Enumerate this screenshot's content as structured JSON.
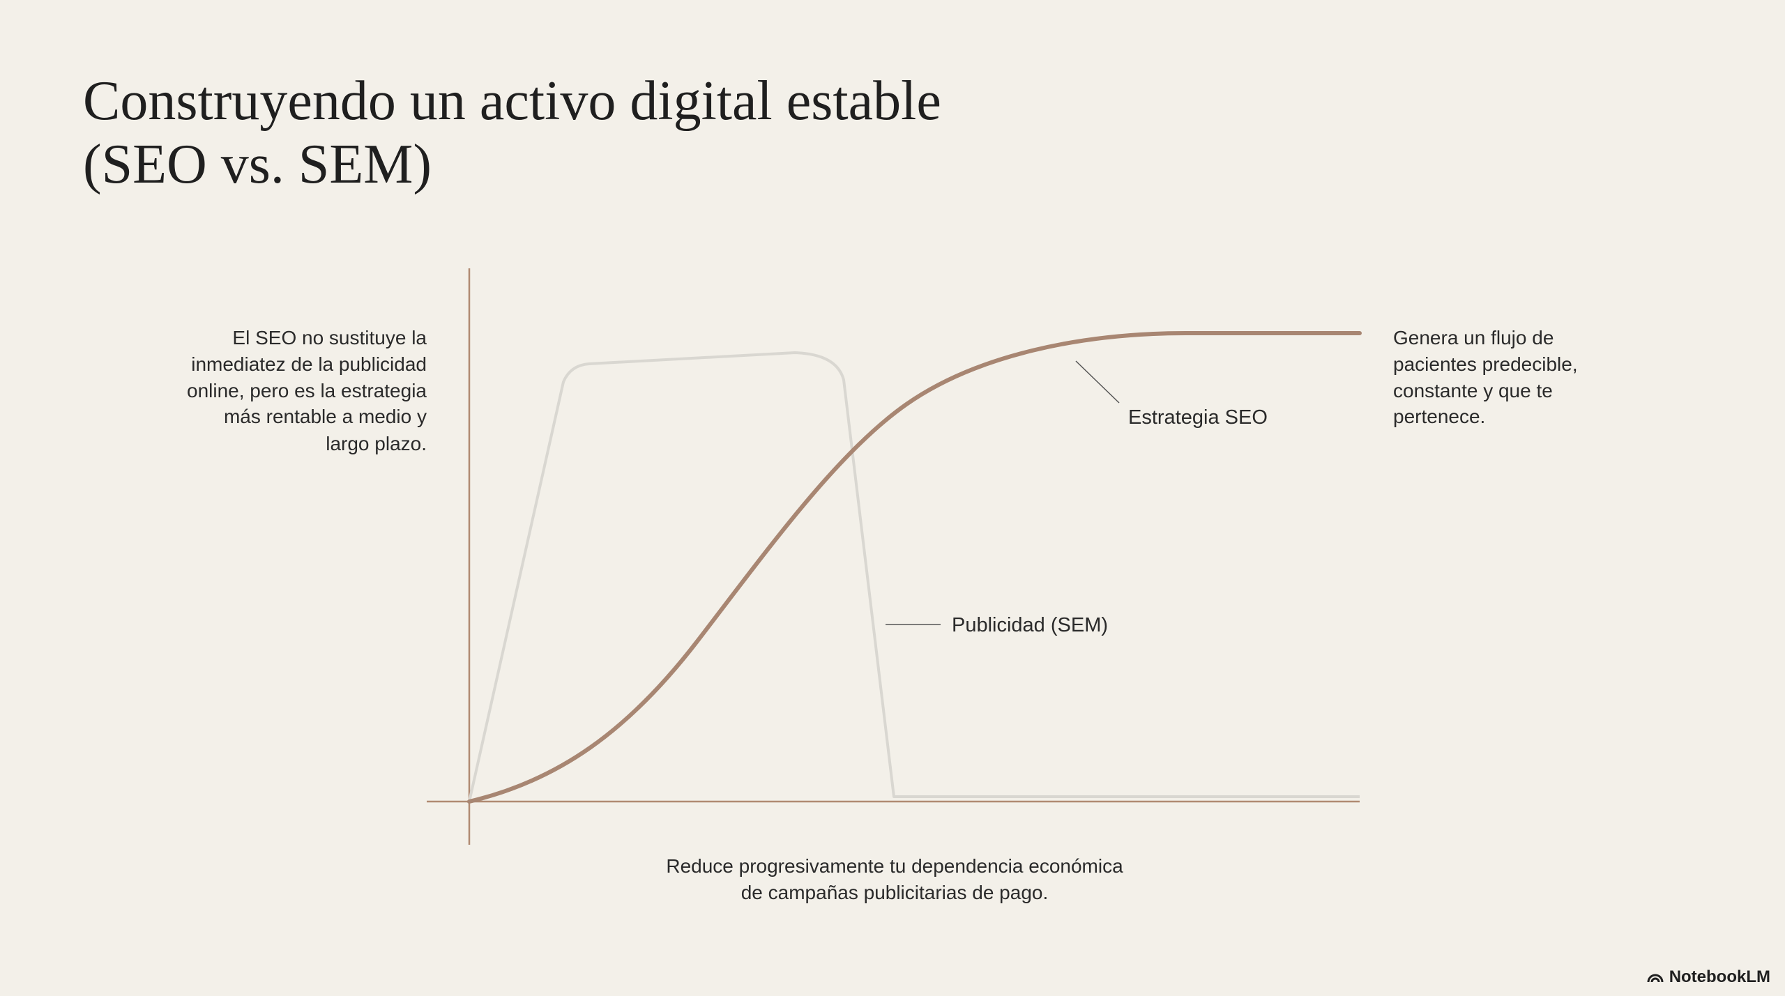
{
  "title": [
    "Construyendo un activo digital estable",
    "(SEO vs. SEM)"
  ],
  "left_note": [
    "El SEO no sustituye la",
    "inmediatez de la publicidad",
    "online, pero es la estrategia",
    "más rentable a medio y",
    "largo plazo."
  ],
  "right_note": [
    "Genera un flujo de",
    "pacientes predecible,",
    "constante y que te",
    "pertenece."
  ],
  "bottom_note": [
    "Reduce progresivamente tu dependencia económica",
    "de campañas publicitarias de pago."
  ],
  "labels": {
    "seo": "Estrategia SEO",
    "sem": "Publicidad (SEM)"
  },
  "brand": "NotebookLM"
}
